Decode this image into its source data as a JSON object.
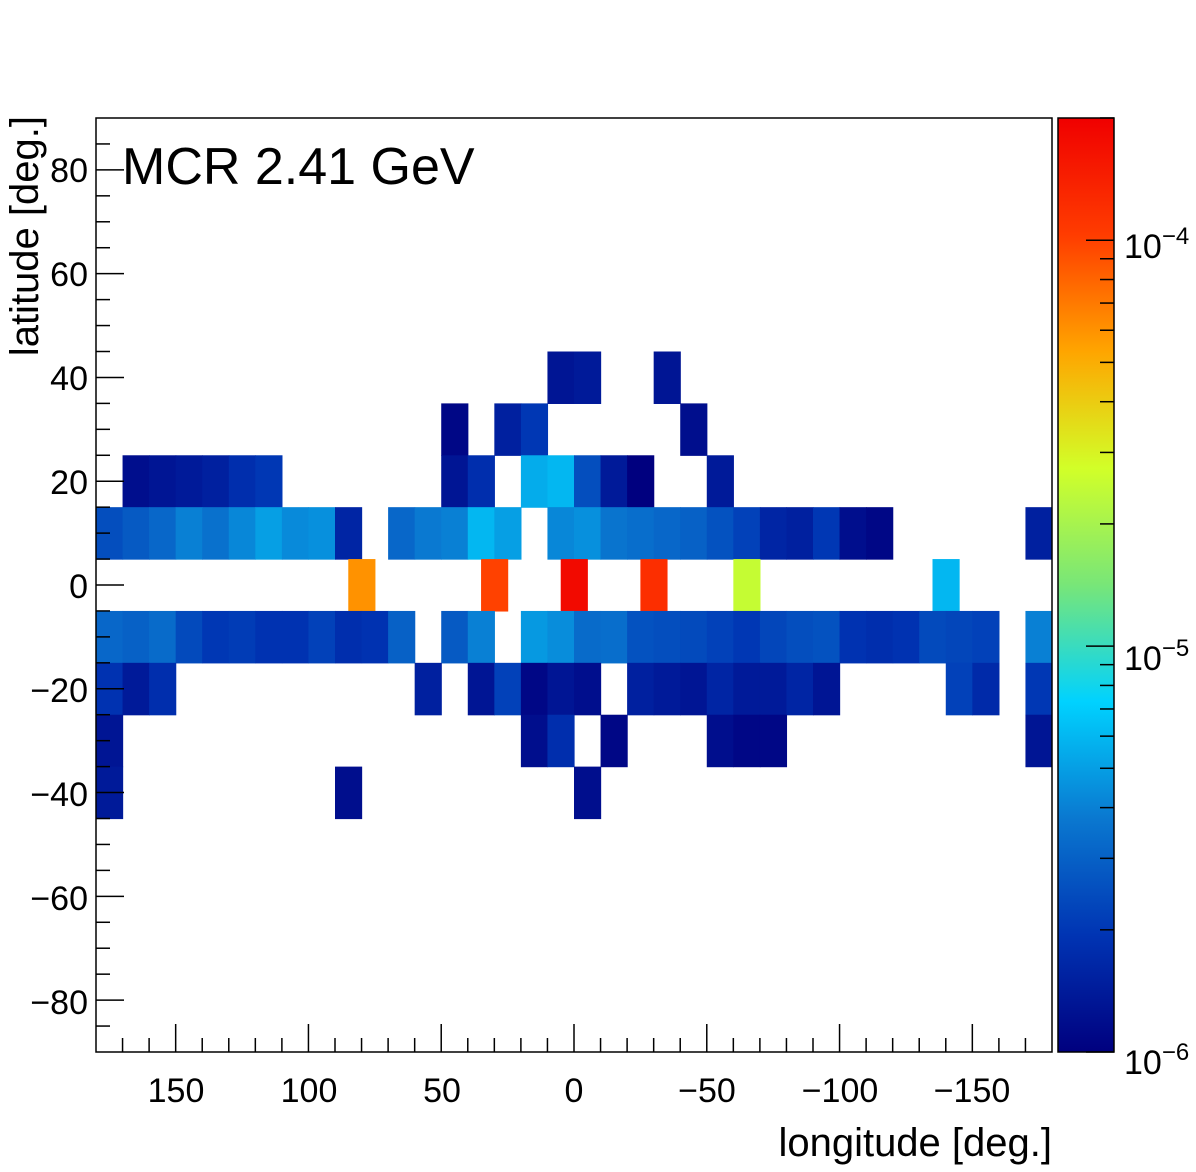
{
  "chart_data": {
    "type": "heatmap",
    "title": "MCR 2.41 GeV",
    "xlabel": "longitude [deg.]",
    "ylabel": "latitude [deg.]",
    "xlim": [
      180,
      -180
    ],
    "ylim": [
      -90,
      90
    ],
    "x_bin_width_deg": 10,
    "y_bin_width_deg": 10,
    "x_tick_labels": [
      "150",
      "100",
      "50",
      "0",
      "−50",
      "−100",
      "−150"
    ],
    "y_tick_labels": [
      "80",
      "60",
      "40",
      "20",
      "0",
      "−20",
      "−40",
      "−60",
      "−80"
    ],
    "colorbar": {
      "scale": "log",
      "range": [
        1e-06,
        0.0002
      ],
      "tick_labels": [
        "10^-4",
        "10^-5",
        "10^-6"
      ],
      "palette": [
        "#00007f",
        "#0034b3",
        "#0a78d0",
        "#00d2ff",
        "#78e678",
        "#d2ff28",
        "#ffa500",
        "#ff3c00",
        "#f00000"
      ]
    },
    "cells": [
      {
        "lon": 165,
        "lat": 20,
        "value": 1.2e-06
      },
      {
        "lon": 155,
        "lat": 20,
        "value": 1.3e-06
      },
      {
        "lon": 145,
        "lat": 20,
        "value": 1.4e-06
      },
      {
        "lon": 135,
        "lat": 20,
        "value": 1.5e-06
      },
      {
        "lon": 125,
        "lat": 20,
        "value": 1.8e-06
      },
      {
        "lon": 115,
        "lat": 20,
        "value": 2e-06
      },
      {
        "lon": 45,
        "lat": 30,
        "value": 1.1e-06
      },
      {
        "lon": 25,
        "lat": 30,
        "value": 1.5e-06
      },
      {
        "lon": 15,
        "lat": 30,
        "value": 2e-06
      },
      {
        "lon": 5,
        "lat": 40,
        "value": 1.3e-06
      },
      {
        "lon": -5,
        "lat": 40,
        "value": 1.4e-06
      },
      {
        "lon": -35,
        "lat": 40,
        "value": 1.3e-06
      },
      {
        "lon": -45,
        "lat": 30,
        "value": 1.2e-06
      },
      {
        "lon": -55,
        "lat": 20,
        "value": 1.4e-06
      },
      {
        "lon": 45,
        "lat": 20,
        "value": 1.3e-06
      },
      {
        "lon": 35,
        "lat": 20,
        "value": 1.8e-06
      },
      {
        "lon": 15,
        "lat": 20,
        "value": 5.5e-06
      },
      {
        "lon": 5,
        "lat": 20,
        "value": 6e-06
      },
      {
        "lon": -5,
        "lat": 20,
        "value": 2.5e-06
      },
      {
        "lon": -15,
        "lat": 20,
        "value": 1.4e-06
      },
      {
        "lon": -25,
        "lat": 20,
        "value": 1e-06
      },
      {
        "lon": 175,
        "lat": 10,
        "value": 2.5e-06
      },
      {
        "lon": 165,
        "lat": 10,
        "value": 2.8e-06
      },
      {
        "lon": 155,
        "lat": 10,
        "value": 3.2e-06
      },
      {
        "lon": 145,
        "lat": 10,
        "value": 4e-06
      },
      {
        "lon": 135,
        "lat": 10,
        "value": 3.5e-06
      },
      {
        "lon": 125,
        "lat": 10,
        "value": 4.2e-06
      },
      {
        "lon": 115,
        "lat": 10,
        "value": 5e-06
      },
      {
        "lon": 105,
        "lat": 10,
        "value": 4.3e-06
      },
      {
        "lon": 95,
        "lat": 10,
        "value": 4.5e-06
      },
      {
        "lon": 85,
        "lat": 10,
        "value": 1.6e-06
      },
      {
        "lon": 65,
        "lat": 10,
        "value": 3.2e-06
      },
      {
        "lon": 55,
        "lat": 10,
        "value": 3.8e-06
      },
      {
        "lon": 45,
        "lat": 10,
        "value": 4e-06
      },
      {
        "lon": 35,
        "lat": 10,
        "value": 6e-06
      },
      {
        "lon": 25,
        "lat": 10,
        "value": 5e-06
      },
      {
        "lon": 5,
        "lat": 10,
        "value": 4.2e-06
      },
      {
        "lon": -5,
        "lat": 10,
        "value": 4.5e-06
      },
      {
        "lon": -15,
        "lat": 10,
        "value": 3.6e-06
      },
      {
        "lon": -25,
        "lat": 10,
        "value": 3.4e-06
      },
      {
        "lon": -35,
        "lat": 10,
        "value": 3.2e-06
      },
      {
        "lon": -45,
        "lat": 10,
        "value": 3e-06
      },
      {
        "lon": -55,
        "lat": 10,
        "value": 2.6e-06
      },
      {
        "lon": -65,
        "lat": 10,
        "value": 2.2e-06
      },
      {
        "lon": -75,
        "lat": 10,
        "value": 1.6e-06
      },
      {
        "lon": -85,
        "lat": 10,
        "value": 1.5e-06
      },
      {
        "lon": -95,
        "lat": 10,
        "value": 2e-06
      },
      {
        "lon": -105,
        "lat": 10,
        "value": 1.2e-06
      },
      {
        "lon": -115,
        "lat": 10,
        "value": 1.1e-06
      },
      {
        "lon": -175,
        "lat": 10,
        "value": 1.5e-06
      },
      {
        "lon": 0,
        "lat": 0,
        "value": 0.00018
      },
      {
        "lon": -30,
        "lat": 0,
        "value": 0.00012
      },
      {
        "lon": 30,
        "lat": 0,
        "value": 0.0001
      },
      {
        "lon": 80,
        "lat": 0,
        "value": 6e-05
      },
      {
        "lon": -65,
        "lat": 0,
        "value": 2.5e-05
      },
      {
        "lon": -140,
        "lat": 0,
        "value": 6e-06
      },
      {
        "lon": 175,
        "lat": -10,
        "value": 3.2e-06
      },
      {
        "lon": 165,
        "lat": -10,
        "value": 3e-06
      },
      {
        "lon": 155,
        "lat": -10,
        "value": 3.3e-06
      },
      {
        "lon": 145,
        "lat": -10,
        "value": 2.4e-06
      },
      {
        "lon": 135,
        "lat": -10,
        "value": 2e-06
      },
      {
        "lon": 125,
        "lat": -10,
        "value": 2.1e-06
      },
      {
        "lon": 115,
        "lat": -10,
        "value": 1.9e-06
      },
      {
        "lon": 105,
        "lat": -10,
        "value": 1.9e-06
      },
      {
        "lon": 95,
        "lat": -10,
        "value": 2.2e-06
      },
      {
        "lon": 85,
        "lat": -10,
        "value": 1.8e-06
      },
      {
        "lon": 75,
        "lat": -10,
        "value": 1.9e-06
      },
      {
        "lon": 65,
        "lat": -10,
        "value": 3e-06
      },
      {
        "lon": 45,
        "lat": -10,
        "value": 2.8e-06
      },
      {
        "lon": 35,
        "lat": -10,
        "value": 4e-06
      },
      {
        "lon": 15,
        "lat": -10,
        "value": 4.8e-06
      },
      {
        "lon": 5,
        "lat": -10,
        "value": 4.4e-06
      },
      {
        "lon": -5,
        "lat": -10,
        "value": 3.3e-06
      },
      {
        "lon": -15,
        "lat": -10,
        "value": 3.4e-06
      },
      {
        "lon": -25,
        "lat": -10,
        "value": 2.6e-06
      },
      {
        "lon": -35,
        "lat": -10,
        "value": 2.5e-06
      },
      {
        "lon": -45,
        "lat": -10,
        "value": 2.4e-06
      },
      {
        "lon": -55,
        "lat": -10,
        "value": 2.2e-06
      },
      {
        "lon": -65,
        "lat": -10,
        "value": 2e-06
      },
      {
        "lon": -75,
        "lat": -10,
        "value": 2.3e-06
      },
      {
        "lon": -85,
        "lat": -10,
        "value": 2.5e-06
      },
      {
        "lon": -95,
        "lat": -10,
        "value": 2.6e-06
      },
      {
        "lon": -105,
        "lat": -10,
        "value": 1.9e-06
      },
      {
        "lon": -115,
        "lat": -10,
        "value": 1.8e-06
      },
      {
        "lon": -125,
        "lat": -10,
        "value": 1.9e-06
      },
      {
        "lon": -135,
        "lat": -10,
        "value": 2.4e-06
      },
      {
        "lon": -145,
        "lat": -10,
        "value": 2.3e-06
      },
      {
        "lon": -155,
        "lat": -10,
        "value": 2.2e-06
      },
      {
        "lon": -175,
        "lat": -10,
        "value": 4e-06
      },
      {
        "lon": 175,
        "lat": -20,
        "value": 1.9e-06
      },
      {
        "lon": 165,
        "lat": -20,
        "value": 1.4e-06
      },
      {
        "lon": 155,
        "lat": -20,
        "value": 1.8e-06
      },
      {
        "lon": 55,
        "lat": -20,
        "value": 1.5e-06
      },
      {
        "lon": 35,
        "lat": -20,
        "value": 1.3e-06
      },
      {
        "lon": 25,
        "lat": -20,
        "value": 2.2e-06
      },
      {
        "lon": 15,
        "lat": -20,
        "value": 1.1e-06
      },
      {
        "lon": 5,
        "lat": -20,
        "value": 1.3e-06
      },
      {
        "lon": -5,
        "lat": -20,
        "value": 1.2e-06
      },
      {
        "lon": -25,
        "lat": -20,
        "value": 1.5e-06
      },
      {
        "lon": -35,
        "lat": -20,
        "value": 1.4e-06
      },
      {
        "lon": -45,
        "lat": -20,
        "value": 1.3e-06
      },
      {
        "lon": -55,
        "lat": -20,
        "value": 1.6e-06
      },
      {
        "lon": -65,
        "lat": -20,
        "value": 1.4e-06
      },
      {
        "lon": -75,
        "lat": -20,
        "value": 1.4e-06
      },
      {
        "lon": -85,
        "lat": -20,
        "value": 1.6e-06
      },
      {
        "lon": -95,
        "lat": -20,
        "value": 1.3e-06
      },
      {
        "lon": -145,
        "lat": -20,
        "value": 2.2e-06
      },
      {
        "lon": -155,
        "lat": -20,
        "value": 1.7e-06
      },
      {
        "lon": -175,
        "lat": -20,
        "value": 2e-06
      },
      {
        "lon": 175,
        "lat": -30,
        "value": 1.3e-06
      },
      {
        "lon": 15,
        "lat": -30,
        "value": 1.2e-06
      },
      {
        "lon": 5,
        "lat": -30,
        "value": 1.8e-06
      },
      {
        "lon": -15,
        "lat": -30,
        "value": 1.1e-06
      },
      {
        "lon": -55,
        "lat": -30,
        "value": 1.2e-06
      },
      {
        "lon": -65,
        "lat": -30,
        "value": 1.1e-06
      },
      {
        "lon": -75,
        "lat": -30,
        "value": 1.1e-06
      },
      {
        "lon": -175,
        "lat": -30,
        "value": 1.3e-06
      },
      {
        "lon": 175,
        "lat": -40,
        "value": 1.4e-06
      },
      {
        "lon": 85,
        "lat": -40,
        "value": 1.2e-06
      },
      {
        "lon": -5,
        "lat": -40,
        "value": 1.2e-06
      }
    ]
  }
}
